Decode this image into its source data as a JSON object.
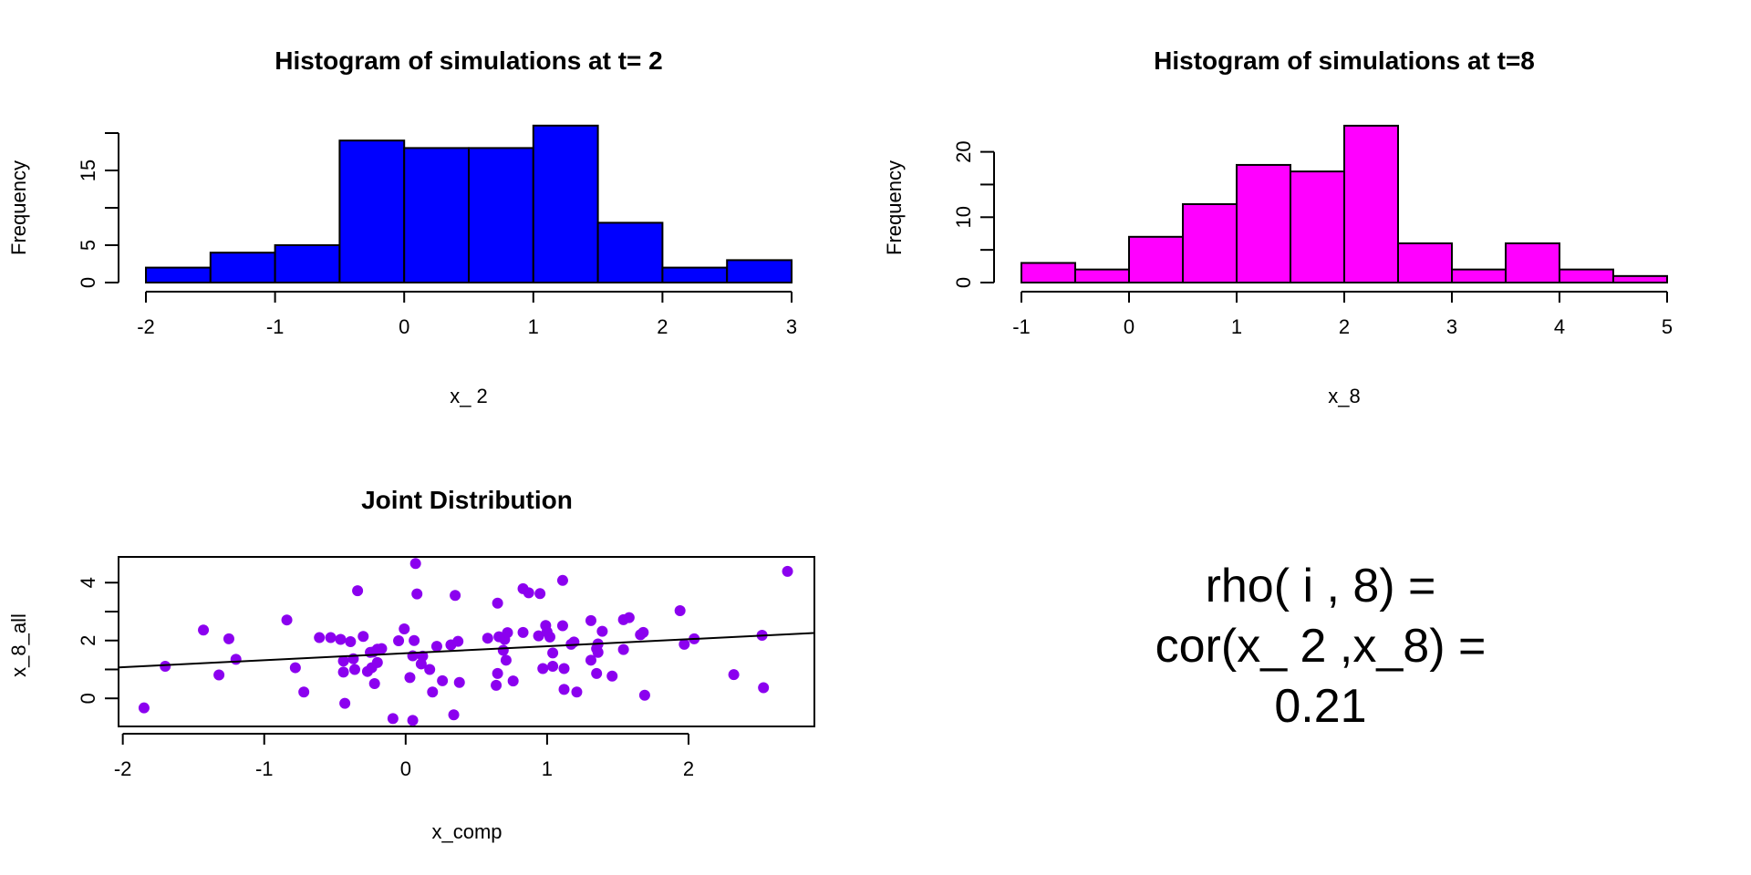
{
  "chart_data": [
    {
      "type": "bar",
      "subtype": "histogram",
      "title": "Histogram of simulations at t= 2",
      "xlabel": "x_ 2",
      "ylabel": "Frequency",
      "bin_edges": [
        -2,
        -1.5,
        -1,
        -0.5,
        0,
        0.5,
        1,
        1.5,
        2,
        2.5,
        3
      ],
      "values": [
        2,
        4,
        5,
        19,
        18,
        18,
        21,
        8,
        2,
        3
      ],
      "xticks": [
        -2,
        -1,
        0,
        1,
        2,
        3
      ],
      "xtick_labels": [
        "-2",
        "-1",
        "0",
        "1",
        "2",
        "3"
      ],
      "yticks": [
        0,
        5,
        10,
        15,
        20
      ],
      "ytick_labels": [
        "0",
        "5",
        "",
        "15",
        ""
      ],
      "xlim": [
        -2,
        3
      ],
      "ylim": [
        0,
        20
      ],
      "bar_color": "#0000ff"
    },
    {
      "type": "bar",
      "subtype": "histogram",
      "title": "Histogram of simulations at t=8",
      "xlabel": "x_8",
      "ylabel": "Frequency",
      "bin_edges": [
        -1,
        -0.5,
        0,
        0.5,
        1,
        1.5,
        2,
        2.5,
        3,
        3.5,
        4,
        4.5,
        5
      ],
      "values": [
        3,
        2,
        7,
        12,
        18,
        17,
        24,
        6,
        2,
        6,
        2,
        1
      ],
      "xticks": [
        -1,
        0,
        1,
        2,
        3,
        4,
        5
      ],
      "xtick_labels": [
        "-1",
        "0",
        "1",
        "2",
        "3",
        "4",
        "5"
      ],
      "yticks": [
        0,
        5,
        10,
        15,
        20
      ],
      "ytick_labels": [
        "0",
        "",
        "10",
        "",
        "20"
      ],
      "xlim": [
        -1,
        5
      ],
      "ylim": [
        0,
        20
      ],
      "bar_color": "#ff00ff"
    },
    {
      "type": "scatter",
      "title": "Joint Distribution",
      "xlabel": "x_comp",
      "ylabel": "x_8_all",
      "xticks": [
        -2,
        -1,
        0,
        1,
        2
      ],
      "xtick_labels": [
        "-2",
        "-1",
        "0",
        "1",
        "2"
      ],
      "yticks": [
        0,
        1,
        2,
        3,
        4
      ],
      "ytick_labels": [
        "0",
        "",
        "2",
        "",
        "4"
      ],
      "xlim": [
        -2.03,
        2.89
      ],
      "ylim": [
        -0.97,
        4.89
      ],
      "point_color": "#8b00ef",
      "fit_line": {
        "x": [
          -2.03,
          2.89
        ],
        "y": [
          1.07,
          2.26
        ]
      },
      "points": [
        [
          -1.85,
          -0.33
        ],
        [
          -1.7,
          1.11
        ],
        [
          -1.43,
          2.36
        ],
        [
          -1.32,
          0.81
        ],
        [
          -1.25,
          2.06
        ],
        [
          -1.2,
          1.35
        ],
        [
          -0.84,
          2.71
        ],
        [
          -0.78,
          1.06
        ],
        [
          -0.72,
          0.22
        ],
        [
          -0.61,
          2.1
        ],
        [
          -0.53,
          2.1
        ],
        [
          -0.46,
          2.04
        ],
        [
          -0.39,
          1.96
        ],
        [
          -0.44,
          1.29
        ],
        [
          -0.44,
          0.91
        ],
        [
          -0.43,
          -0.17
        ],
        [
          -0.37,
          1.37
        ],
        [
          -0.36,
          1.0
        ],
        [
          -0.34,
          3.72
        ],
        [
          -0.3,
          2.14
        ],
        [
          -0.27,
          0.93
        ],
        [
          -0.25,
          1.59
        ],
        [
          -0.24,
          1.06
        ],
        [
          -0.23,
          1.6
        ],
        [
          -0.2,
          1.24
        ],
        [
          -0.22,
          0.51
        ],
        [
          -0.17,
          1.72
        ],
        [
          -0.2,
          1.7
        ],
        [
          -0.09,
          -0.7
        ],
        [
          -0.05,
          1.99
        ],
        [
          -0.01,
          2.4
        ],
        [
          0.06,
          2.0
        ],
        [
          0.05,
          1.47
        ],
        [
          0.03,
          0.72
        ],
        [
          0.05,
          -0.76
        ],
        [
          0.07,
          4.66
        ],
        [
          0.08,
          3.61
        ],
        [
          0.12,
          1.46
        ],
        [
          0.11,
          1.19
        ],
        [
          0.17,
          1.0
        ],
        [
          0.19,
          0.22
        ],
        [
          0.22,
          1.8
        ],
        [
          0.26,
          0.61
        ],
        [
          0.32,
          1.85
        ],
        [
          0.34,
          -0.57
        ],
        [
          0.35,
          3.56
        ],
        [
          0.37,
          1.97
        ],
        [
          0.38,
          0.55
        ],
        [
          0.58,
          2.08
        ],
        [
          0.64,
          0.45
        ],
        [
          0.65,
          0.86
        ],
        [
          0.65,
          3.29
        ],
        [
          0.66,
          2.13
        ],
        [
          0.7,
          2.04
        ],
        [
          0.69,
          1.66
        ],
        [
          0.71,
          1.32
        ],
        [
          0.72,
          2.27
        ],
        [
          0.76,
          0.6
        ],
        [
          0.83,
          2.28
        ],
        [
          0.83,
          3.79
        ],
        [
          0.87,
          3.65
        ],
        [
          0.95,
          3.62
        ],
        [
          0.94,
          2.16
        ],
        [
          0.97,
          1.03
        ],
        [
          1.11,
          4.08
        ],
        [
          0.99,
          2.52
        ],
        [
          1.0,
          2.3
        ],
        [
          1.02,
          2.12
        ],
        [
          1.04,
          1.57
        ],
        [
          1.04,
          1.11
        ],
        [
          1.12,
          1.03
        ],
        [
          1.11,
          2.51
        ],
        [
          1.12,
          0.31
        ],
        [
          1.17,
          1.87
        ],
        [
          1.19,
          1.95
        ],
        [
          1.21,
          0.22
        ],
        [
          1.31,
          2.69
        ],
        [
          1.31,
          1.32
        ],
        [
          1.35,
          0.86
        ],
        [
          1.35,
          1.72
        ],
        [
          1.36,
          1.88
        ],
        [
          1.36,
          1.59
        ],
        [
          1.39,
          2.32
        ],
        [
          1.46,
          0.77
        ],
        [
          1.54,
          1.69
        ],
        [
          1.54,
          2.72
        ],
        [
          1.58,
          2.79
        ],
        [
          1.66,
          2.2
        ],
        [
          1.68,
          2.28
        ],
        [
          1.69,
          0.11
        ],
        [
          1.94,
          3.03
        ],
        [
          1.97,
          1.87
        ],
        [
          2.04,
          2.06
        ],
        [
          2.32,
          0.82
        ],
        [
          2.52,
          2.18
        ],
        [
          2.53,
          0.37
        ],
        [
          2.7,
          4.39
        ]
      ]
    },
    {
      "type": "table",
      "annotation_lines": [
        "rho( i , 8) =",
        "cor(x_ 2 ,x_8) =",
        "0.21"
      ]
    }
  ]
}
